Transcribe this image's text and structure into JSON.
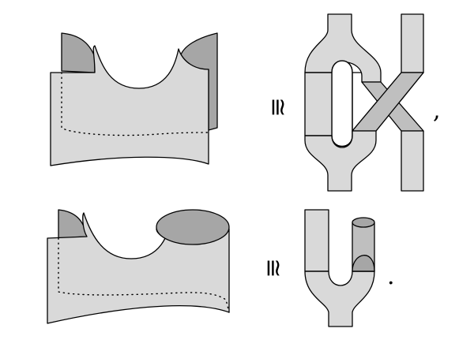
{
  "relations": {
    "top_symbol": "≅",
    "bottom_symbol": "≅"
  },
  "punctuation": {
    "comma": ",",
    "period": "."
  },
  "colors": {
    "light_surface": "#d9d9d9",
    "dark_surface": "#a6a6a6",
    "mid_surface": "#bfbfbf",
    "outline": "#000000"
  }
}
